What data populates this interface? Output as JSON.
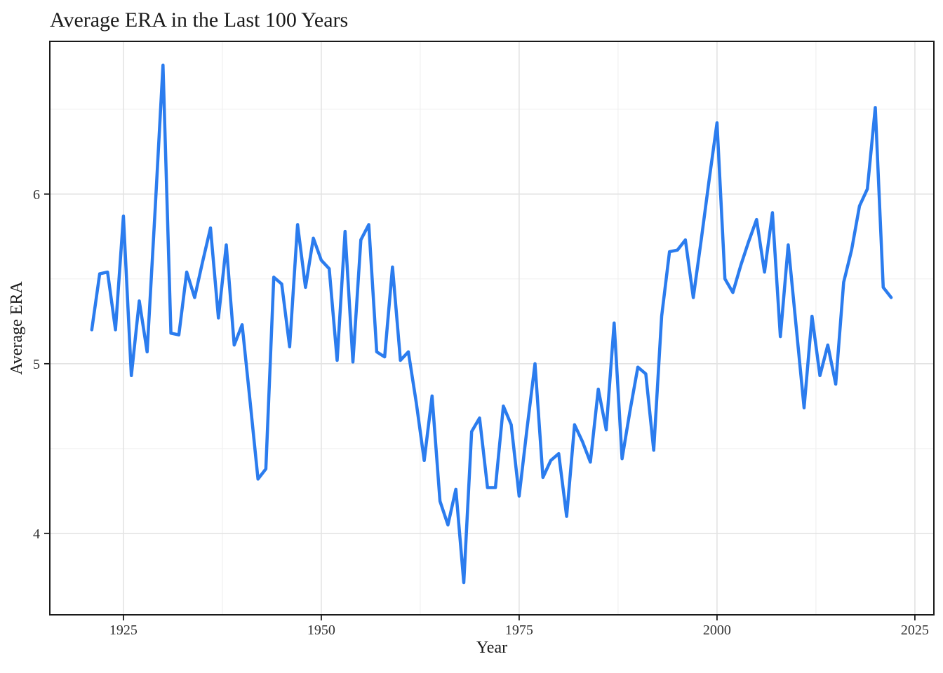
{
  "chart_data": {
    "type": "line",
    "title": "Average ERA in the Last 100 Years",
    "xlabel": "Year",
    "ylabel": "Average ERA",
    "legend": "none",
    "grid": "on",
    "background_color": "#ffffff",
    "panel_border_color": "#1a1a1a",
    "grid_major_color": "#e3e3e3",
    "grid_minor_color": "#f0f0f0",
    "line_color": "#2b7cee",
    "x_ticks": [
      1925,
      1950,
      1975,
      2000,
      2025
    ],
    "y_ticks": [
      4,
      5,
      6
    ],
    "x_minor": [
      1937.5,
      1962.5,
      1987.5,
      2012.5
    ],
    "y_minor": [
      3.5,
      4.5,
      5.5,
      6.5
    ],
    "x_range": [
      1915.7,
      2027.4
    ],
    "y_range": [
      3.52,
      6.9
    ],
    "series": [
      {
        "name": "Average ERA",
        "x": [
          1921,
          1922,
          1923,
          1924,
          1925,
          1926,
          1927,
          1928,
          1929,
          1930,
          1931,
          1932,
          1933,
          1934,
          1935,
          1936,
          1937,
          1938,
          1939,
          1940,
          1941,
          1942,
          1943,
          1944,
          1945,
          1946,
          1947,
          1948,
          1949,
          1950,
          1951,
          1952,
          1953,
          1954,
          1955,
          1956,
          1957,
          1958,
          1959,
          1960,
          1961,
          1962,
          1963,
          1964,
          1965,
          1966,
          1967,
          1968,
          1969,
          1970,
          1971,
          1972,
          1973,
          1974,
          1975,
          1976,
          1977,
          1978,
          1979,
          1980,
          1981,
          1982,
          1983,
          1984,
          1985,
          1986,
          1987,
          1988,
          1989,
          1990,
          1991,
          1992,
          1993,
          1994,
          1995,
          1996,
          1997,
          1998,
          1999,
          2000,
          2001,
          2002,
          2003,
          2004,
          2005,
          2006,
          2007,
          2008,
          2009,
          2010,
          2011,
          2012,
          2013,
          2014,
          2015,
          2016,
          2017,
          2018,
          2019,
          2020,
          2021,
          2022
        ],
        "values": [
          5.2,
          5.53,
          5.54,
          5.2,
          5.87,
          4.93,
          5.37,
          5.07,
          5.9,
          6.76,
          5.18,
          5.17,
          5.54,
          5.39,
          5.6,
          5.8,
          5.27,
          5.7,
          5.11,
          5.23,
          4.78,
          4.32,
          4.38,
          5.51,
          5.47,
          5.1,
          5.82,
          5.45,
          5.74,
          5.61,
          5.56,
          5.02,
          5.78,
          5.01,
          5.73,
          5.82,
          5.07,
          5.04,
          5.57,
          5.02,
          5.07,
          4.77,
          4.43,
          4.81,
          4.19,
          4.05,
          4.26,
          3.71,
          4.6,
          4.68,
          4.27,
          4.27,
          4.75,
          4.64,
          4.22,
          4.62,
          5.0,
          4.33,
          4.43,
          4.47,
          4.1,
          4.64,
          4.54,
          4.42,
          4.85,
          4.61,
          5.24,
          4.44,
          4.72,
          4.98,
          4.94,
          4.49,
          5.28,
          5.66,
          5.67,
          5.73,
          5.39,
          5.73,
          6.08,
          6.42,
          5.5,
          5.42,
          5.58,
          5.72,
          5.85,
          5.54,
          5.89,
          5.16,
          5.7,
          5.22,
          4.74,
          5.28,
          4.93,
          5.11,
          4.88,
          5.48,
          5.67,
          5.93,
          6.03,
          6.51,
          5.45,
          5.39
        ]
      }
    ]
  }
}
